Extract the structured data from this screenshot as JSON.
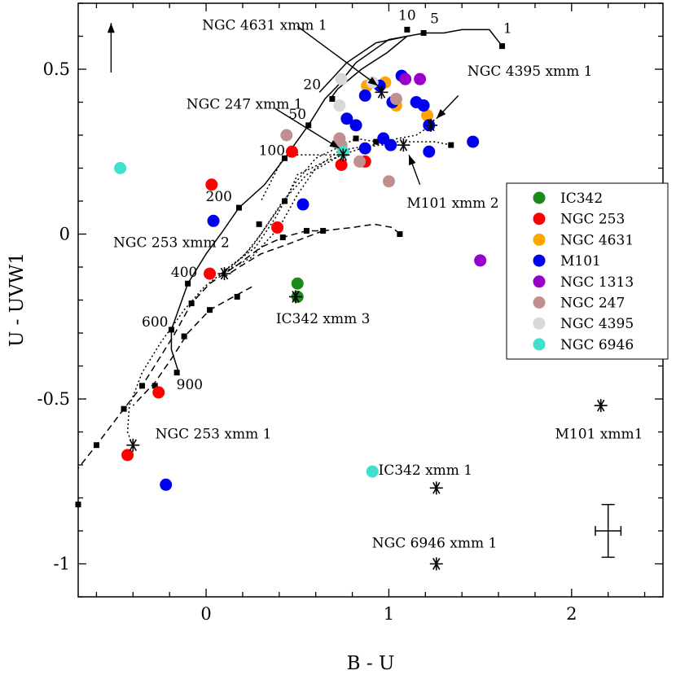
{
  "chart_data": {
    "type": "scatter",
    "title": "",
    "xlabel": "B - U",
    "ylabel": "U - UVW1",
    "xlim": [
      -0.7,
      2.5
    ],
    "ylim": [
      -1.1,
      0.7
    ],
    "xticks": [
      {
        "value": 0,
        "label": "0"
      },
      {
        "value": 1,
        "label": "1"
      },
      {
        "value": 2,
        "label": "2"
      }
    ],
    "yticks": [
      {
        "value": 0.5,
        "label": "0.5"
      },
      {
        "value": 0,
        "label": "0"
      },
      {
        "value": -0.5,
        "label": "-0.5"
      },
      {
        "value": -1,
        "label": "-1"
      }
    ],
    "grid": false,
    "legend_position": "right",
    "series": [
      {
        "name": "IC342",
        "color": "#1a8a1a",
        "points": [
          [
            0.5,
            -0.15
          ],
          [
            0.5,
            -0.19
          ]
        ]
      },
      {
        "name": "NGC 253",
        "color": "#ff0000",
        "points": [
          [
            0.47,
            0.25
          ],
          [
            0.03,
            0.15
          ],
          [
            0.02,
            -0.12
          ],
          [
            0.39,
            0.02
          ],
          [
            0.74,
            0.21
          ],
          [
            0.87,
            0.22
          ],
          [
            -0.26,
            -0.48
          ],
          [
            -0.43,
            -0.67
          ]
        ]
      },
      {
        "name": "NGC 4631",
        "color": "#ffa500",
        "points": [
          [
            0.88,
            0.45
          ],
          [
            0.98,
            0.46
          ],
          [
            1.04,
            0.39
          ],
          [
            1.21,
            0.36
          ]
        ]
      },
      {
        "name": "M101",
        "color": "#0000ee",
        "points": [
          [
            0.95,
            0.45
          ],
          [
            1.07,
            0.48
          ],
          [
            0.87,
            0.42
          ],
          [
            1.02,
            0.4
          ],
          [
            1.15,
            0.4
          ],
          [
            1.19,
            0.39
          ],
          [
            0.77,
            0.35
          ],
          [
            0.82,
            0.33
          ],
          [
            1.22,
            0.33
          ],
          [
            0.97,
            0.29
          ],
          [
            1.01,
            0.27
          ],
          [
            0.87,
            0.26
          ],
          [
            1.22,
            0.25
          ],
          [
            1.46,
            0.28
          ],
          [
            0.53,
            0.09
          ],
          [
            0.04,
            0.04
          ],
          [
            -0.22,
            -0.76
          ]
        ]
      },
      {
        "name": "NGC 1313",
        "color": "#9900cc",
        "points": [
          [
            1.09,
            0.47
          ],
          [
            1.17,
            0.47
          ],
          [
            1.5,
            -0.08
          ]
        ]
      },
      {
        "name": "NGC 247",
        "color": "#c09090",
        "points": [
          [
            1.04,
            0.41
          ],
          [
            0.44,
            0.3
          ],
          [
            0.73,
            0.29
          ],
          [
            0.74,
            0.27
          ],
          [
            0.84,
            0.22
          ],
          [
            1.0,
            0.16
          ]
        ]
      },
      {
        "name": "NGC 4395",
        "color": "#d8d8d8",
        "points": [
          [
            0.74,
            0.47
          ],
          [
            0.91,
            0.46
          ],
          [
            0.73,
            0.39
          ]
        ]
      },
      {
        "name": "NGC 6946",
        "color": "#40e0d0",
        "points": [
          [
            -0.47,
            0.2
          ],
          [
            0.75,
            0.25
          ],
          [
            0.91,
            -0.72
          ]
        ]
      }
    ],
    "xmm_sources": [
      {
        "label": "NGC 4631 xmm 1",
        "x": 0.96,
        "y": 0.43
      },
      {
        "label": "NGC 4395 xmm 1",
        "x": 1.23,
        "y": 0.33
      },
      {
        "label": "NGC 247 xmm 1",
        "x": 0.75,
        "y": 0.24
      },
      {
        "label": "M101 xmm 2",
        "x": 1.08,
        "y": 0.27
      },
      {
        "label": "NGC 253 xmm 2",
        "x": 0.1,
        "y": -0.12
      },
      {
        "label": "IC342 xmm 3",
        "x": 0.49,
        "y": -0.19
      },
      {
        "label": "NGC 253 xmm 1",
        "x": -0.4,
        "y": -0.64
      },
      {
        "label": "M101 xmm1",
        "x": 2.16,
        "y": -0.52
      },
      {
        "label": "IC342 xmm 1",
        "x": 1.26,
        "y": -0.77
      },
      {
        "label": "NGC 6946 xmm 1",
        "x": 1.26,
        "y": -1.0
      }
    ],
    "tracks": [
      {
        "style": "solid",
        "points": [
          [
            1.62,
            0.57
          ],
          [
            1.55,
            0.62
          ],
          [
            1.4,
            0.62
          ],
          [
            1.3,
            0.61
          ],
          [
            1.2,
            0.61
          ],
          [
            1.1,
            0.6
          ],
          [
            1.0,
            0.59
          ],
          [
            0.82,
            0.52
          ],
          [
            0.72,
            0.45
          ],
          [
            0.65,
            0.41
          ],
          [
            0.56,
            0.33
          ],
          [
            0.43,
            0.23
          ],
          [
            0.32,
            0.15
          ],
          [
            0.18,
            0.08
          ],
          [
            0.08,
            0.0
          ],
          [
            0.0,
            -0.06
          ],
          [
            -0.1,
            -0.15
          ],
          [
            -0.19,
            -0.29
          ],
          [
            -0.19,
            -0.35
          ],
          [
            -0.15,
            -0.42
          ]
        ],
        "markers": [
          [
            1.62,
            0.57
          ],
          [
            1.19,
            0.61
          ],
          [
            1.1,
            0.62
          ],
          [
            0.69,
            0.41
          ],
          [
            0.56,
            0.33
          ],
          [
            0.43,
            0.23
          ],
          [
            0.18,
            0.08
          ],
          [
            -0.1,
            -0.15
          ],
          [
            -0.19,
            -0.29
          ],
          [
            -0.16,
            -0.42
          ]
        ],
        "age_labels": [
          {
            "text": "1",
            "x": 1.65,
            "y": 0.61
          },
          {
            "text": "5",
            "x": 1.25,
            "y": 0.64
          },
          {
            "text": "10",
            "x": 1.1,
            "y": 0.65
          },
          {
            "text": "20",
            "x": 0.58,
            "y": 0.44
          },
          {
            "text": "50",
            "x": 0.5,
            "y": 0.35
          },
          {
            "text": "100",
            "x": 0.36,
            "y": 0.24
          },
          {
            "text": "200",
            "x": 0.07,
            "y": 0.1
          },
          {
            "text": "400",
            "x": -0.12,
            "y": -0.13
          },
          {
            "text": "600",
            "x": -0.28,
            "y": -0.28
          },
          {
            "text": "900",
            "x": -0.09,
            "y": -0.47
          }
        ]
      },
      {
        "style": "solid",
        "points": [
          [
            0.68,
            0.41
          ],
          [
            0.72,
            0.44
          ],
          [
            0.85,
            0.5
          ],
          [
            0.99,
            0.55
          ],
          [
            1.1,
            0.6
          ],
          [
            0.93,
            0.58
          ],
          [
            0.77,
            0.52
          ],
          [
            0.62,
            0.43
          ]
        ],
        "markers": []
      },
      {
        "style": "dotted",
        "points": [
          [
            1.34,
            0.27
          ],
          [
            1.25,
            0.28
          ],
          [
            1.1,
            0.28
          ],
          [
            0.93,
            0.28
          ],
          [
            0.82,
            0.29
          ],
          [
            0.75,
            0.27
          ],
          [
            0.6,
            0.23
          ],
          [
            0.48,
            0.15
          ],
          [
            0.38,
            0.05
          ],
          [
            0.27,
            -0.04
          ],
          [
            0.15,
            -0.09
          ],
          [
            0.06,
            -0.13
          ],
          [
            -0.01,
            -0.16
          ],
          [
            -0.12,
            -0.23
          ],
          [
            -0.25,
            -0.33
          ],
          [
            -0.35,
            -0.42
          ],
          [
            -0.42,
            -0.52
          ],
          [
            -0.43,
            -0.6
          ],
          [
            -0.41,
            -0.63
          ]
        ],
        "markers": [
          [
            1.34,
            0.27
          ],
          [
            0.93,
            0.28
          ],
          [
            0.82,
            0.29
          ]
        ]
      },
      {
        "style": "dotted",
        "points": [
          [
            1.23,
            0.33
          ],
          [
            1.15,
            0.3
          ],
          [
            1.05,
            0.29
          ],
          [
            0.92,
            0.27
          ],
          [
            0.8,
            0.26
          ],
          [
            0.72,
            0.25
          ],
          [
            0.6,
            0.2
          ],
          [
            0.5,
            0.12
          ],
          [
            0.4,
            0.02
          ],
          [
            0.25,
            -0.07
          ],
          [
            0.12,
            -0.11
          ]
        ],
        "markers": []
      },
      {
        "style": "dotted",
        "points": [
          [
            1.08,
            0.27
          ],
          [
            0.95,
            0.27
          ],
          [
            0.85,
            0.26
          ],
          [
            0.74,
            0.24
          ],
          [
            0.55,
            0.18
          ],
          [
            0.42,
            0.1
          ],
          [
            0.3,
            0.0
          ],
          [
            0.2,
            -0.07
          ],
          [
            0.1,
            -0.11
          ]
        ],
        "markers": []
      },
      {
        "style": "dotted",
        "points": [
          [
            0.75,
            0.24
          ],
          [
            0.65,
            0.22
          ],
          [
            0.5,
            0.18
          ],
          [
            0.45,
            0.12
          ],
          [
            0.35,
            0.04
          ],
          [
            0.25,
            -0.04
          ],
          [
            0.12,
            -0.11
          ]
        ],
        "markers": [
          [
            0.43,
            0.1
          ],
          [
            0.29,
            0.03
          ]
        ]
      },
      {
        "style": "dotted",
        "points": [
          [
            0.75,
            0.24
          ],
          [
            0.62,
            0.24
          ],
          [
            0.5,
            0.24
          ],
          [
            0.42,
            0.23
          ],
          [
            0.3,
            0.1
          ]
        ],
        "markers": []
      },
      {
        "style": "dashed",
        "points": [
          [
            1.06,
            0.0
          ],
          [
            1.02,
            0.02
          ],
          [
            0.92,
            0.03
          ],
          [
            0.8,
            0.02
          ],
          [
            0.64,
            0.01
          ],
          [
            0.55,
            0.01
          ],
          [
            0.42,
            -0.01
          ],
          [
            0.3,
            -0.04
          ],
          [
            0.18,
            -0.09
          ],
          [
            0.1,
            -0.12
          ],
          [
            0.02,
            -0.15
          ],
          [
            -0.08,
            -0.21
          ],
          [
            -0.18,
            -0.31
          ],
          [
            -0.35,
            -0.46
          ],
          [
            -0.45,
            -0.53
          ],
          [
            -0.6,
            -0.64
          ],
          [
            -0.7,
            -0.71
          ]
        ],
        "markers": [
          [
            1.06,
            0.0
          ],
          [
            0.64,
            0.01
          ],
          [
            0.55,
            0.01
          ],
          [
            0.42,
            -0.01
          ],
          [
            -0.08,
            -0.21
          ],
          [
            -0.35,
            -0.46
          ],
          [
            -0.45,
            -0.53
          ],
          [
            -0.6,
            -0.64
          ],
          [
            -0.7,
            -0.82
          ]
        ]
      },
      {
        "style": "dashed",
        "points": [
          [
            0.64,
            0.01
          ],
          [
            0.45,
            -0.03
          ],
          [
            0.3,
            -0.06
          ],
          [
            0.18,
            -0.1
          ],
          [
            0.1,
            -0.13
          ]
        ],
        "markers": []
      },
      {
        "style": "dashed",
        "points": [
          [
            0.25,
            -0.16
          ],
          [
            0.15,
            -0.19
          ],
          [
            0.02,
            -0.23
          ],
          [
            -0.1,
            -0.3
          ],
          [
            -0.18,
            -0.37
          ],
          [
            -0.28,
            -0.45
          ],
          [
            -0.4,
            -0.52
          ]
        ],
        "markers": [
          [
            0.17,
            -0.19
          ],
          [
            0.02,
            -0.23
          ],
          [
            -0.12,
            -0.31
          ],
          [
            -0.28,
            -0.46
          ]
        ]
      }
    ],
    "xmm_arrows": [
      {
        "from": [
          0.5,
          0.63
        ],
        "to": [
          0.94,
          0.45
        ]
      },
      {
        "from": [
          1.38,
          0.42
        ],
        "to": [
          1.26,
          0.35
        ]
      },
      {
        "from": [
          0.38,
          0.38
        ],
        "to": [
          0.73,
          0.26
        ]
      },
      {
        "from": [
          1.17,
          0.15
        ],
        "to": [
          1.11,
          0.24
        ]
      }
    ],
    "shift_arrow": {
      "from": [
        -0.52,
        0.49
      ],
      "to": [
        -0.52,
        0.64
      ]
    },
    "error_bar": {
      "x": 2.2,
      "y": -0.9,
      "xerr": 0.07,
      "yerr": 0.08
    }
  }
}
